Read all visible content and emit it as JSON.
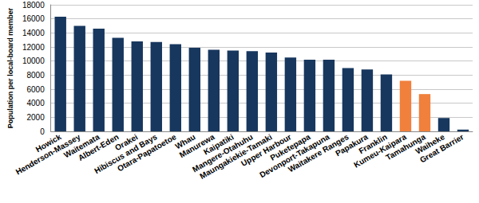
{
  "chart_data": {
    "type": "bar",
    "y_label": "Population per local-board member",
    "categories": [
      "Howick",
      "Henderson-Massey",
      "Waitemata",
      "Albert-Eden",
      "Orakei",
      "Hibiscus and Bays",
      "Otara-Papatoetoe",
      "Whau",
      "Manurewa",
      "Kaipatiki",
      "Mangere-Otahuhu",
      "Maungakiekie-Tamaki",
      "Upper Harbour",
      "Puketepapa",
      "Devonport-Takapuna",
      "Waitakere Ranges",
      "Papakura",
      "Franklin",
      "Kumeu-Kaipara",
      "Tamahunga",
      "Waiheke",
      "Great Barrier"
    ],
    "values": [
      16300,
      15000,
      14600,
      13300,
      12800,
      12700,
      12400,
      11900,
      11600,
      11500,
      11400,
      11200,
      10500,
      10200,
      10200,
      9000,
      8800,
      8100,
      7200,
      5300,
      1900,
      250
    ],
    "colors": [
      "#17375e",
      "#17375e",
      "#17375e",
      "#17375e",
      "#17375e",
      "#17375e",
      "#17375e",
      "#17375e",
      "#17375e",
      "#17375e",
      "#17375e",
      "#17375e",
      "#17375e",
      "#17375e",
      "#17375e",
      "#17375e",
      "#17375e",
      "#17375e",
      "#f0803c",
      "#f0803c",
      "#17375e",
      "#17375e"
    ],
    "ylim": [
      0,
      18000
    ],
    "yticks": [
      0,
      2000,
      4000,
      6000,
      8000,
      10000,
      12000,
      14000,
      16000,
      18000
    ],
    "grid": true
  }
}
